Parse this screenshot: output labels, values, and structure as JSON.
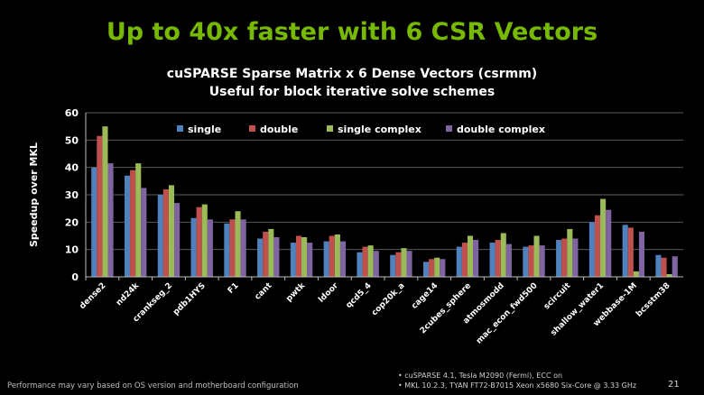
{
  "slide": {
    "title": "Up to 40x faster with 6 CSR Vectors",
    "footer": "Performance may vary based on OS version and motherboard configuration",
    "notes": [
      "• cuSPARSE 4.1, Tesla M2090 (Fermi), ECC on",
      "• MKL 10.2.3, TYAN FT72-B7015 Xeon x5680 Six-Core @ 3.33 GHz"
    ],
    "page_number": "21"
  },
  "chart_data": {
    "type": "bar",
    "title": "cuSPARSE Sparse Matrix x 6 Dense Vectors (csrmm)",
    "subtitle": "Useful for block iterative solve schemes",
    "xlabel": "",
    "ylabel": "Speedup over MKL",
    "ylim": [
      0,
      60
    ],
    "yticks": [
      0,
      10,
      20,
      30,
      40,
      50,
      60
    ],
    "grid": true,
    "legend_position": "top",
    "categories": [
      "dense2",
      "nd24k",
      "crankseg_2",
      "pdb1HYS",
      "F1",
      "cant",
      "pwtk",
      "ldoor",
      "qcd5_4",
      "cop20k_a",
      "cage14",
      "2cubes_sphere",
      "atmosmodd",
      "mac_econ_fwd500",
      "scircuit",
      "shallow_water1",
      "webbase-1M",
      "bcsstm38"
    ],
    "series": [
      {
        "name": "single",
        "color": "#4f81bd",
        "values": [
          40,
          37,
          30,
          21.5,
          19.5,
          14,
          12.5,
          13,
          9,
          8,
          5.5,
          11,
          12.5,
          11,
          13.5,
          20,
          19,
          8
        ]
      },
      {
        "name": "double",
        "color": "#c0504d",
        "values": [
          51.5,
          39,
          32,
          25.5,
          21,
          16.5,
          15,
          15,
          11,
          9,
          6.5,
          12.5,
          13.5,
          11.5,
          14,
          22.5,
          18,
          7
        ]
      },
      {
        "name": "single complex",
        "color": "#9bbb59",
        "values": [
          55,
          41.5,
          33.5,
          26.5,
          24,
          17.5,
          14.5,
          15.5,
          11.5,
          10.5,
          7,
          15,
          16,
          15,
          17.5,
          28.5,
          2,
          1
        ]
      },
      {
        "name": "double complex",
        "color": "#8064a2",
        "values": [
          41.5,
          32.5,
          27,
          21,
          21,
          14.5,
          12.5,
          13,
          9.5,
          9.5,
          6.5,
          13.5,
          12,
          11.5,
          14,
          24.5,
          16.5,
          7.5
        ]
      }
    ]
  }
}
